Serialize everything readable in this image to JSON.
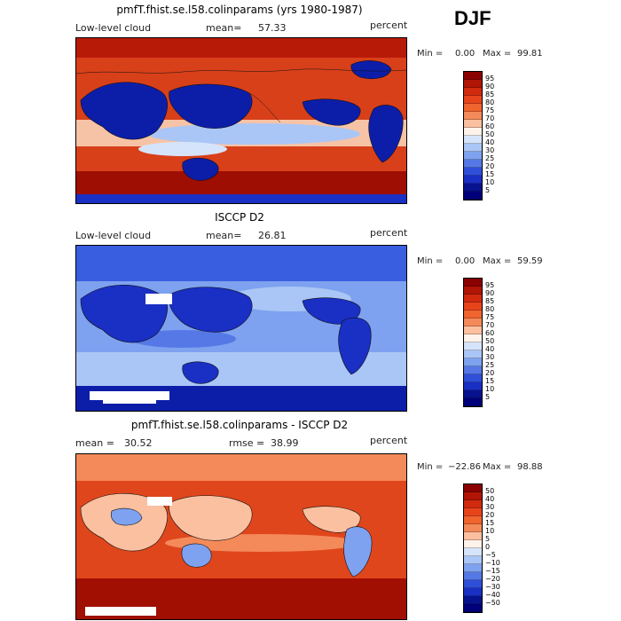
{
  "season": "DJF",
  "panels": [
    {
      "title": "pmfT.fhist.se.l58.colinparams (yrs 1980-1987)",
      "left_label": "Low-level cloud",
      "stat_label": "mean=",
      "stat_value": "57.33",
      "units": "percent",
      "min_label": "Min =",
      "min_value": "0.00",
      "max_label": "Max =",
      "max_value": "99.81",
      "colorbar_labels": [
        "95",
        "90",
        "85",
        "80",
        "75",
        "70",
        "60",
        "50",
        "40",
        "30",
        "25",
        "20",
        "15",
        "10",
        "5"
      ]
    },
    {
      "title": "ISCCP D2",
      "left_label": "Low-level cloud",
      "stat_label": "mean=",
      "stat_value": "26.81",
      "units": "percent",
      "min_label": "Min =",
      "min_value": "0.00",
      "max_label": "Max =",
      "max_value": "59.59",
      "colorbar_labels": [
        "95",
        "90",
        "85",
        "80",
        "75",
        "70",
        "60",
        "50",
        "40",
        "30",
        "25",
        "20",
        "15",
        "10",
        "5"
      ]
    },
    {
      "title": "pmfT.fhist.se.l58.colinparams - ISCCP D2",
      "left_label": "mean =",
      "left_value": "30.52",
      "stat_label": "rmse =",
      "stat_value": "38.99",
      "units": "percent",
      "min_label": "Min =",
      "min_value": "−22.86",
      "max_label": "Max =",
      "max_value": "98.88",
      "colorbar_labels": [
        "50",
        "40",
        "30",
        "20",
        "15",
        "10",
        "5",
        "0",
        "−5",
        "−10",
        "−15",
        "−20",
        "−30",
        "−40",
        "−50"
      ]
    }
  ],
  "colors": {
    "abs_scale": [
      "#8b0000",
      "#b01505",
      "#d12a0e",
      "#e8441c",
      "#f0642e",
      "#f48a5a",
      "#fbc0a0",
      "#fdf3ea",
      "#d6e4fb",
      "#aac6f6",
      "#7ea2ef",
      "#5578e6",
      "#2f4fd9",
      "#1a2fc4",
      "#07128f",
      "#00007a"
    ],
    "diff_scale": [
      "#8b0000",
      "#b01505",
      "#d12a0e",
      "#e8441c",
      "#f0642e",
      "#f48a5a",
      "#fbc0a0",
      "#fdf3ea",
      "#d6e4fb",
      "#aac6f6",
      "#7ea2ef",
      "#5578e6",
      "#2f4fd9",
      "#1a2fc4",
      "#07128f",
      "#00007a"
    ]
  },
  "chart_data": [
    {
      "type": "heatmap",
      "title": "pmfT.fhist.se.l58.colinparams (yrs 1980-1987)",
      "variable": "Low-level cloud",
      "units": "percent",
      "mean": 57.33,
      "min": 0.0,
      "max": 99.81,
      "contour_levels": [
        5,
        10,
        15,
        20,
        25,
        30,
        40,
        50,
        60,
        70,
        75,
        80,
        85,
        90,
        95
      ],
      "map": "global lat-lon, coastlines"
    },
    {
      "type": "heatmap",
      "title": "ISCCP D2",
      "variable": "Low-level cloud",
      "units": "percent",
      "mean": 26.81,
      "min": 0.0,
      "max": 59.59,
      "contour_levels": [
        5,
        10,
        15,
        20,
        25,
        30,
        40,
        50,
        60,
        70,
        75,
        80,
        85,
        90,
        95
      ],
      "map": "global lat-lon, coastlines"
    },
    {
      "type": "heatmap",
      "title": "pmfT.fhist.se.l58.colinparams - ISCCP D2",
      "units": "percent",
      "mean": 30.52,
      "rmse": 38.99,
      "min": -22.86,
      "max": 98.88,
      "contour_levels": [
        -50,
        -40,
        -30,
        -20,
        -15,
        -10,
        -5,
        0,
        5,
        10,
        15,
        20,
        30,
        40,
        50
      ],
      "map": "global lat-lon, coastlines"
    }
  ]
}
